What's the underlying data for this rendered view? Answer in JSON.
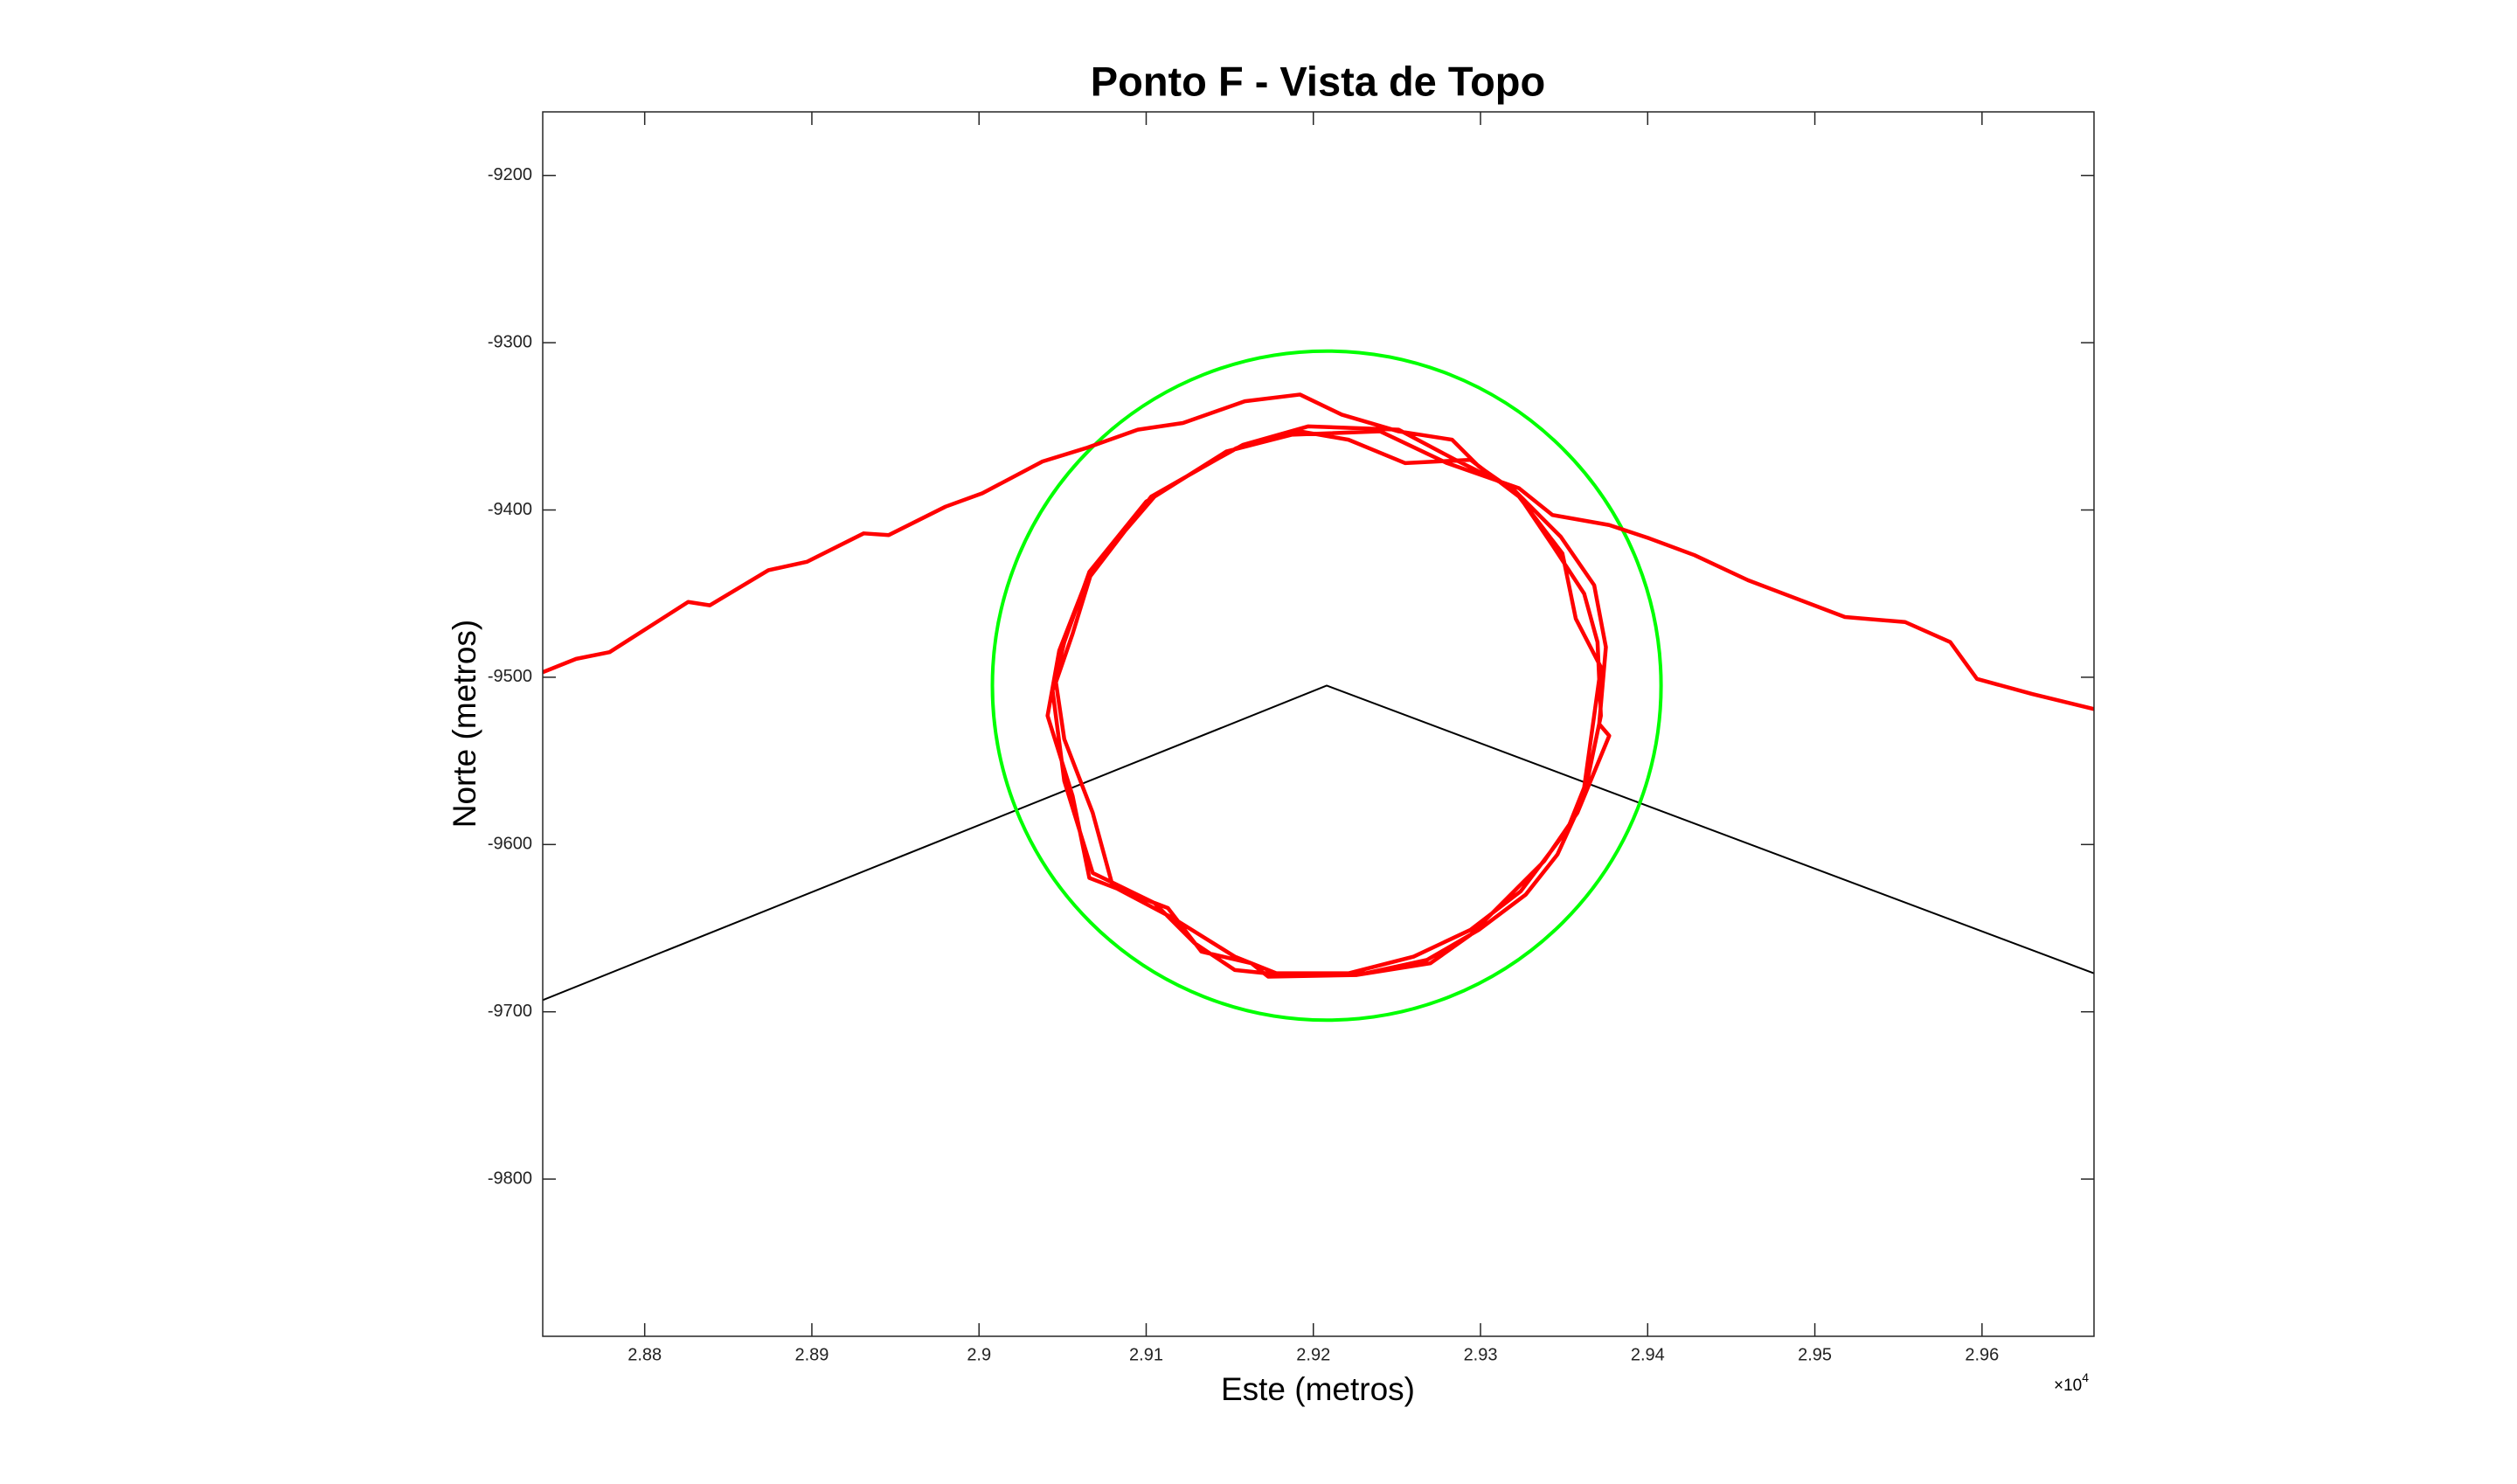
{
  "chart_data": {
    "type": "line",
    "title": "Ponto F - Vista de Topo",
    "x_label": "Este (metros)",
    "y_label": "Norte (metros)",
    "x_multiplier": {
      "base": "×10",
      "exponent": "4"
    },
    "xlim": [
      28739,
      29667
    ],
    "ylim": [
      -9894,
      -9162
    ],
    "xticks": [
      {
        "value": 28800,
        "label": "2.88"
      },
      {
        "value": 28900,
        "label": "2.89"
      },
      {
        "value": 29000,
        "label": "2.9"
      },
      {
        "value": 29100,
        "label": "2.91"
      },
      {
        "value": 29200,
        "label": "2.92"
      },
      {
        "value": 29300,
        "label": "2.93"
      },
      {
        "value": 29400,
        "label": "2.94"
      },
      {
        "value": 29500,
        "label": "2.95"
      },
      {
        "value": 29600,
        "label": "2.96"
      }
    ],
    "yticks": [
      -9800,
      -9700,
      -9600,
      -9500,
      -9400,
      -9300,
      -9200
    ],
    "grid": false,
    "circles": [
      {
        "center": [
          29208,
          -9505
        ],
        "radius": 200,
        "color": "#00ff00"
      }
    ],
    "series": [
      {
        "color": "#000000",
        "width": 2,
        "x": [
          28739,
          29208,
          29667
        ],
        "y": [
          -9693,
          -9505,
          -9677
        ]
      },
      {
        "color": "#ff0000",
        "width": 4.5,
        "x": [
          28739,
          28759,
          28779,
          28826,
          28839,
          28874,
          28897,
          28931,
          28946,
          28980,
          29002,
          29038,
          29064,
          29095,
          29122,
          29159,
          29192,
          29217,
          29251,
          29283,
          29299,
          29322,
          29343,
          29362,
          29370,
          29372,
          29362,
          29346,
          29327,
          29299,
          29268,
          29231,
          29182,
          29153,
          29129,
          29105,
          29068,
          29051,
          29044,
          29051,
          29066,
          29100,
          29129,
          29158,
          29197,
          29251,
          29285,
          29319,
          29348,
          29368,
          29375,
          29371,
          29377,
          29358,
          29338,
          29294,
          29270,
          29226,
          29173,
          29163,
          29133,
          29113,
          29066,
          29056,
          29041,
          29048,
          29064,
          29103,
          29154,
          29192,
          29221,
          29255,
          29294,
          29323,
          29349,
          29357,
          29372,
          29362,
          29352,
          29324,
          29294,
          29260,
          29221,
          29178,
          29153,
          29116,
          29080,
          29068,
          29051,
          29046,
          29056,
          29068,
          29105,
          29148,
          29187,
          29240,
          29280,
          29323,
          29343,
          29377,
          29401,
          29428,
          29460,
          29518,
          29554,
          29581,
          29597,
          29630,
          29667
        ],
        "y": [
          -9497,
          -9489,
          -9485,
          -9455,
          -9457,
          -9436,
          -9431,
          -9414,
          -9415,
          -9398,
          -9390,
          -9371,
          -9363,
          -9352,
          -9348,
          -9335,
          -9331,
          -9343,
          -9353,
          -9358,
          -9374,
          -9390,
          -9421,
          -9450,
          -9479,
          -9523,
          -9571,
          -9606,
          -9630,
          -9651,
          -9669,
          -9677,
          -9678,
          -9675,
          -9659,
          -9635,
          -9617,
          -9562,
          -9508,
          -9479,
          -9437,
          -9395,
          -9377,
          -9361,
          -9350,
          -9352,
          -9370,
          -9387,
          -9416,
          -9445,
          -9482,
          -9528,
          -9535,
          -9581,
          -9610,
          -9654,
          -9671,
          -9678,
          -9679,
          -9671,
          -9664,
          -9638,
          -9620,
          -9571,
          -9523,
          -9484,
          -9443,
          -9392,
          -9363,
          -9353,
          -9358,
          -9372,
          -9370,
          -9392,
          -9426,
          -9465,
          -9494,
          -9566,
          -9591,
          -9628,
          -9651,
          -9667,
          -9677,
          -9677,
          -9667,
          -9644,
          -9625,
          -9581,
          -9537,
          -9503,
          -9474,
          -9435,
          -9392,
          -9365,
          -9355,
          -9353,
          -9372,
          -9387,
          -9403,
          -9409,
          -9417,
          -9427,
          -9442,
          -9464,
          -9467,
          -9479,
          -9501,
          -9510,
          -9519
        ]
      }
    ]
  }
}
